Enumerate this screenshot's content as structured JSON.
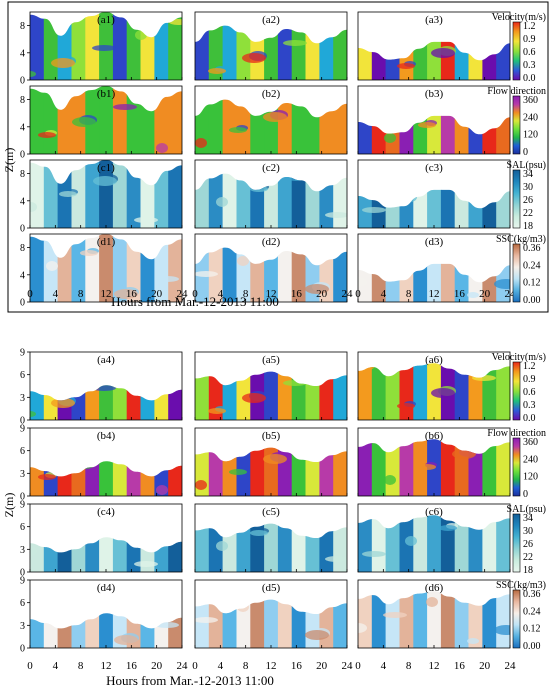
{
  "figure": {
    "xlabel": "Hours from Mar.-12-2013 11:00",
    "ylabel": "Z(m)"
  },
  "colorbars": [
    {
      "title": "Velocity(m/s)",
      "ticks": [
        "1.2",
        "0.9",
        "0.6",
        "0.3",
        "0.0"
      ],
      "colors": [
        "#6a0dad",
        "#2e5bd9",
        "#20c27a",
        "#8fe03a",
        "#f2e43a",
        "#f39a1e",
        "#e8281a"
      ]
    },
    {
      "title": "Flow direction",
      "ticks": [
        "360",
        "240",
        "120",
        "0"
      ],
      "colors": [
        "#1c2f9c",
        "#1e5fd6",
        "#22b84a",
        "#6ee03c",
        "#d8e83a",
        "#f08c22",
        "#b73aa8",
        "#8a1fb3"
      ]
    },
    {
      "title": "SAL(psu)",
      "ticks": [
        "34",
        "30",
        "26",
        "22",
        "18"
      ],
      "colors": [
        "#e8f6ee",
        "#c9ecde",
        "#8fd3d4",
        "#45b3d2",
        "#1f86bd",
        "#135f9a"
      ]
    },
    {
      "title": "SSC(kg/m3)",
      "ticks": [
        "0.36",
        "0.24",
        "0.12",
        "0.00"
      ],
      "colors": [
        "#1a6fbf",
        "#55b0e0",
        "#bfe4f5",
        "#f7efe8",
        "#e9b8a0",
        "#b86a40"
      ]
    }
  ],
  "chart_data": [
    {
      "type": "heatmap",
      "block": "upper",
      "x": {
        "ticks": [
          0,
          4,
          8,
          12,
          16,
          20,
          24
        ],
        "range": [
          0,
          24
        ],
        "label": "Hours from Mar.-12-2013 11:00"
      },
      "y": {
        "ticks": [
          0,
          4,
          8
        ],
        "range": [
          0,
          10
        ],
        "label": "Z(m)"
      },
      "rows": [
        "Velocity(m/s)",
        "Flow direction",
        "SAL(psu)",
        "SSC(kg/m3)"
      ],
      "panels": [
        {
          "label": "(a1)",
          "row": 0,
          "col": 0,
          "profile": [
            9.6,
            9.0,
            6.5,
            8.5,
            9.4,
            10.0,
            9.2,
            7.4,
            6.3,
            8.4,
            9.2
          ]
        },
        {
          "label": "(a2)",
          "row": 0,
          "col": 1,
          "profile": [
            5.6,
            7.3,
            8.0,
            7.0,
            5.6,
            6.2,
            7.5,
            7.0,
            5.4,
            6.3,
            7.4
          ]
        },
        {
          "label": "(a3)",
          "row": 0,
          "col": 2,
          "profile": [
            4.7,
            4.1,
            3.0,
            3.2,
            4.6,
            5.6,
            5.6,
            4.0,
            2.9,
            3.8,
            5.4
          ]
        },
        {
          "label": "(b1)",
          "row": 1,
          "col": 0,
          "profile": [
            9.6,
            9.0,
            6.5,
            8.5,
            9.4,
            10.0,
            9.2,
            7.4,
            6.3,
            8.4,
            9.2
          ]
        },
        {
          "label": "(b2)",
          "row": 1,
          "col": 1,
          "profile": [
            5.6,
            7.3,
            8.0,
            7.0,
            5.6,
            6.2,
            7.5,
            7.0,
            5.4,
            6.3,
            7.4
          ]
        },
        {
          "label": "(b3)",
          "row": 1,
          "col": 2,
          "profile": [
            4.7,
            4.1,
            3.0,
            3.2,
            4.6,
            5.6,
            5.6,
            4.0,
            2.9,
            3.8,
            5.4
          ]
        },
        {
          "label": "(c1)",
          "row": 2,
          "col": 0,
          "profile": [
            9.6,
            9.0,
            6.5,
            8.5,
            9.4,
            10.0,
            9.2,
            7.4,
            6.3,
            8.4,
            9.2
          ]
        },
        {
          "label": "(c2)",
          "row": 2,
          "col": 1,
          "profile": [
            5.6,
            7.3,
            8.0,
            7.0,
            5.6,
            6.2,
            7.5,
            7.0,
            5.4,
            6.3,
            7.4
          ]
        },
        {
          "label": "(c3)",
          "row": 2,
          "col": 2,
          "profile": [
            4.7,
            4.1,
            3.0,
            3.2,
            4.6,
            5.6,
            5.6,
            4.0,
            2.9,
            3.8,
            5.4
          ]
        },
        {
          "label": "(d1)",
          "row": 3,
          "col": 0,
          "profile": [
            9.6,
            9.0,
            6.5,
            8.5,
            9.4,
            10.0,
            9.2,
            7.4,
            6.3,
            8.4,
            9.2
          ]
        },
        {
          "label": "(d2)",
          "row": 3,
          "col": 1,
          "profile": [
            5.6,
            7.3,
            8.0,
            7.0,
            5.6,
            6.2,
            7.5,
            7.0,
            5.4,
            6.3,
            7.4
          ]
        },
        {
          "label": "(d3)",
          "row": 3,
          "col": 2,
          "profile": [
            4.7,
            4.1,
            3.0,
            3.2,
            4.6,
            5.6,
            5.6,
            4.0,
            2.9,
            3.8,
            5.4
          ]
        }
      ]
    },
    {
      "type": "heatmap",
      "block": "lower",
      "x": {
        "ticks": [
          0,
          4,
          8,
          12,
          16,
          20,
          24
        ],
        "range": [
          0,
          24
        ],
        "label": "Hours from Mar.-12-2013 11:00"
      },
      "y": {
        "ticks": [
          0,
          3,
          6,
          9
        ],
        "range": [
          0,
          9
        ],
        "label": "Z(m)"
      },
      "rows": [
        "Velocity(m/s)",
        "Flow direction",
        "SAL(psu)",
        "SSC(kg/m3)"
      ],
      "panels": [
        {
          "label": "(a4)",
          "row": 0,
          "col": 0,
          "profile": [
            3.8,
            3.3,
            2.6,
            3.0,
            3.8,
            4.6,
            4.2,
            3.2,
            2.6,
            3.4,
            4.0
          ]
        },
        {
          "label": "(a5)",
          "row": 0,
          "col": 1,
          "profile": [
            5.5,
            5.8,
            4.6,
            5.2,
            6.0,
            6.4,
            5.8,
            4.8,
            4.5,
            5.4,
            5.9
          ]
        },
        {
          "label": "(a6)",
          "row": 0,
          "col": 2,
          "profile": [
            6.5,
            7.0,
            5.8,
            6.6,
            7.2,
            7.5,
            6.8,
            6.0,
            5.6,
            6.6,
            7.1
          ]
        },
        {
          "label": "(b4)",
          "row": 1,
          "col": 0,
          "profile": [
            3.8,
            3.3,
            2.6,
            3.0,
            3.8,
            4.6,
            4.2,
            3.2,
            2.6,
            3.4,
            4.0
          ]
        },
        {
          "label": "(b5)",
          "row": 1,
          "col": 1,
          "profile": [
            5.5,
            5.8,
            4.6,
            5.2,
            6.0,
            6.4,
            5.8,
            4.8,
            4.5,
            5.4,
            5.9
          ]
        },
        {
          "label": "(b6)",
          "row": 1,
          "col": 2,
          "profile": [
            6.5,
            7.0,
            5.8,
            6.6,
            7.2,
            7.5,
            6.8,
            6.0,
            5.6,
            6.6,
            7.1
          ]
        },
        {
          "label": "(c4)",
          "row": 2,
          "col": 0,
          "profile": [
            3.8,
            3.3,
            2.6,
            3.0,
            3.8,
            4.6,
            4.2,
            3.2,
            2.6,
            3.4,
            4.0
          ]
        },
        {
          "label": "(c5)",
          "row": 2,
          "col": 1,
          "profile": [
            5.5,
            5.8,
            4.6,
            5.2,
            6.0,
            6.4,
            5.8,
            4.8,
            4.5,
            5.4,
            5.9
          ]
        },
        {
          "label": "(c6)",
          "row": 2,
          "col": 2,
          "profile": [
            6.5,
            7.0,
            5.8,
            6.6,
            7.2,
            7.5,
            6.8,
            6.0,
            5.6,
            6.6,
            7.1
          ]
        },
        {
          "label": "(d4)",
          "row": 3,
          "col": 0,
          "profile": [
            3.8,
            3.3,
            2.6,
            3.0,
            3.8,
            4.6,
            4.2,
            3.2,
            2.6,
            3.4,
            4.0
          ]
        },
        {
          "label": "(d5)",
          "row": 3,
          "col": 1,
          "profile": [
            5.5,
            5.8,
            4.6,
            5.2,
            6.0,
            6.4,
            5.8,
            4.8,
            4.5,
            5.4,
            5.9
          ]
        },
        {
          "label": "(d6)",
          "row": 3,
          "col": 2,
          "profile": [
            6.5,
            7.0,
            5.8,
            6.6,
            7.2,
            7.5,
            6.8,
            6.0,
            5.6,
            6.6,
            7.1
          ]
        }
      ]
    }
  ]
}
